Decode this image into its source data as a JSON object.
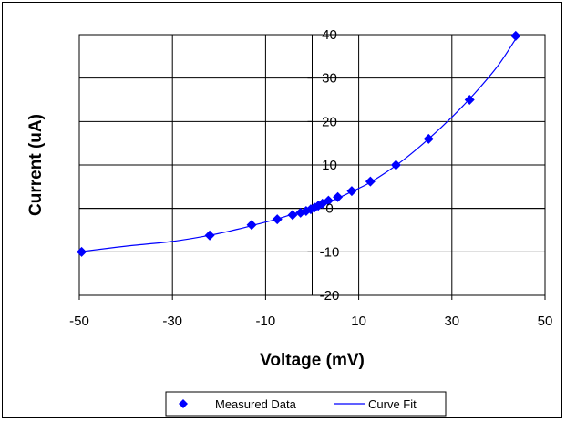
{
  "chart_data": {
    "type": "scatter",
    "title": "",
    "xlabel": "Voltage (mV)",
    "ylabel": "Current (uA)",
    "xlim": [
      -50,
      50
    ],
    "ylim": [
      -20,
      40
    ],
    "x_ticks": [
      -50,
      -30,
      -10,
      10,
      30,
      50
    ],
    "x_tick_labels": [
      "-50",
      "-30",
      "-10",
      "10",
      "30",
      "50"
    ],
    "x_gridlines": [
      -50,
      -30,
      -10,
      0,
      10,
      30,
      50
    ],
    "y_ticks": [
      -20,
      -10,
      0,
      10,
      20,
      30,
      40
    ],
    "y_tick_labels": [
      "-20",
      "-10",
      "0",
      "10",
      "20",
      "30",
      "40"
    ],
    "grid": true,
    "legend_position": "bottom-center",
    "series": [
      {
        "name": "Measured Data",
        "kind": "markers",
        "marker": "diamond",
        "color": "#0000ff",
        "x": [
          -49.5,
          -22,
          -13,
          -7.5,
          -4.2,
          -2.5,
          -1.3,
          -0.3,
          0.5,
          1.3,
          2.2,
          3.5,
          5.5,
          8.5,
          12.5,
          18,
          25,
          33.8,
          43.7
        ],
        "y": [
          -10,
          -6.2,
          -3.8,
          -2.5,
          -1.5,
          -1,
          -0.6,
          -0.2,
          0.2,
          0.6,
          1.1,
          1.8,
          2.6,
          4,
          6.2,
          10,
          16,
          25,
          39.7
        ]
      },
      {
        "name": "Curve Fit",
        "kind": "line",
        "color": "#0000ff",
        "x": [
          -50,
          -40,
          -30,
          -22,
          -16,
          -12,
          -8,
          -5,
          -2,
          0,
          2,
          5,
          8,
          12,
          16,
          20,
          25,
          30,
          35,
          40,
          44
        ],
        "y": [
          -10,
          -8.7,
          -7.6,
          -6.2,
          -4.8,
          -3.7,
          -2.6,
          -1.6,
          -0.7,
          0,
          0.8,
          2.1,
          3.6,
          5.7,
          8.4,
          11.5,
          16,
          21,
          26.6,
          33,
          39.5
        ]
      }
    ]
  }
}
